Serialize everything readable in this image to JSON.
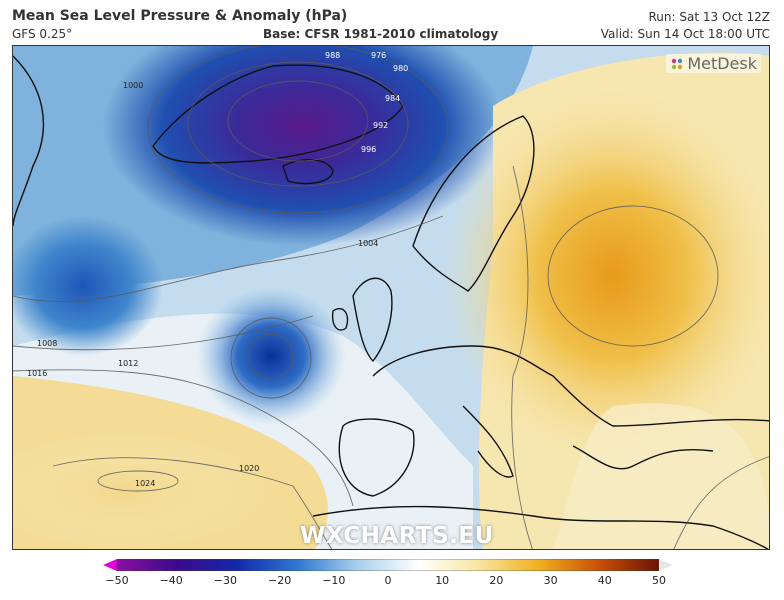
{
  "header": {
    "title": "Mean Sea Level Pressure & Anomaly (hPa)",
    "model": "GFS 0.25°",
    "base": "Base: CFSR 1981-2010 climatology",
    "run": "Run: Sat 13 Oct 12Z",
    "valid": "Valid: Sun 14 Oct 18:00 UTC"
  },
  "logo": "MetDesk",
  "watermark": "WXCHARTS.EU",
  "map": {
    "isobar_labels": [
      "976",
      "980",
      "984",
      "988",
      "992",
      "996",
      "1000",
      "1004",
      "1008",
      "1012",
      "1016",
      "1020",
      "1024"
    ],
    "colors": {
      "strong_negative": "#5a1a8a",
      "negative": "#1f4fb0",
      "weak_negative": "#bcd6ec",
      "neutral": "#eef3f6",
      "positive": "#f2d27a",
      "strong_positive": "#e89a18"
    }
  },
  "colorbar": {
    "ticks": [
      "−50",
      "−40",
      "−30",
      "−20",
      "−10",
      "0",
      "10",
      "20",
      "30",
      "40",
      "50"
    ],
    "stops": [
      "#e000e0",
      "#8a10a0",
      "#3a0a8a",
      "#1428a8",
      "#2f78d0",
      "#a8d0ec",
      "#ffffff",
      "#f7e6a0",
      "#f0b020",
      "#c85008",
      "#6a1405",
      "#e6e6e6"
    ]
  }
}
